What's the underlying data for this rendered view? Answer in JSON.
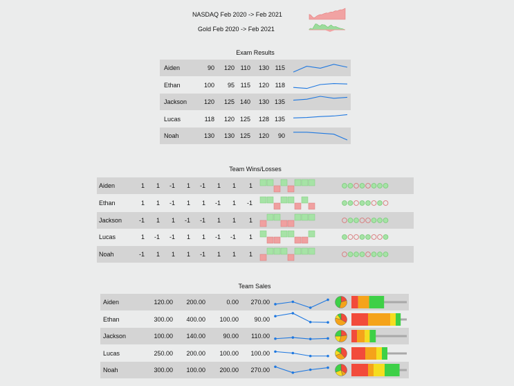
{
  "header": {
    "nasdaq_label": "NASDAQ Feb 2020 -> Feb 2021",
    "gold_label": "Gold Feb 2020 -> Feb 2021"
  },
  "exam": {
    "title": "Exam Results",
    "rows": [
      {
        "name": "Aiden",
        "scores": [
          "90",
          "120",
          "110",
          "130",
          "115"
        ]
      },
      {
        "name": "Ethan",
        "scores": [
          "100",
          "95",
          "115",
          "120",
          "118"
        ]
      },
      {
        "name": "Jackson",
        "scores": [
          "120",
          "125",
          "140",
          "130",
          "135"
        ]
      },
      {
        "name": "Lucas",
        "scores": [
          "118",
          "120",
          "125",
          "128",
          "135"
        ]
      },
      {
        "name": "Noah",
        "scores": [
          "130",
          "130",
          "125",
          "120",
          "90"
        ]
      }
    ]
  },
  "wins": {
    "title": "Team Wins/Losses",
    "rows": [
      {
        "name": "Aiden",
        "results": [
          "1",
          "1",
          "-1",
          "1",
          "-1",
          "1",
          "1",
          "1"
        ]
      },
      {
        "name": "Ethan",
        "results": [
          "1",
          "1",
          "-1",
          "1",
          "1",
          "-1",
          "1",
          "-1"
        ]
      },
      {
        "name": "Jackson",
        "results": [
          "-1",
          "1",
          "1",
          "-1",
          "-1",
          "1",
          "1",
          "1"
        ]
      },
      {
        "name": "Lucas",
        "results": [
          "1",
          "-1",
          "-1",
          "1",
          "1",
          "-1",
          "-1",
          "1"
        ]
      },
      {
        "name": "Noah",
        "results": [
          "-1",
          "1",
          "1",
          "1",
          "-1",
          "1",
          "1",
          "1"
        ]
      }
    ]
  },
  "sales": {
    "title": "Team Sales",
    "rows": [
      {
        "name": "Aiden",
        "values": [
          "120.00",
          "200.00",
          "0.00",
          "270.00"
        ]
      },
      {
        "name": "Ethan",
        "values": [
          "300.00",
          "400.00",
          "100.00",
          "90.00"
        ]
      },
      {
        "name": "Jackson",
        "values": [
          "100.00",
          "140.00",
          "90.00",
          "110.00"
        ]
      },
      {
        "name": "Lucas",
        "values": [
          "250.00",
          "200.00",
          "100.00",
          "100.00"
        ]
      },
      {
        "name": "Noah",
        "values": [
          "300.00",
          "100.00",
          "200.00",
          "270.00"
        ]
      }
    ]
  },
  "colors": {
    "line": "#1f78e0",
    "win": "#a6e3a6",
    "win_border": "#7fcc7f",
    "loss": "#f0a0a0",
    "loss_border": "#d87878",
    "nasdaq": "#f1a3a3",
    "gold": "#9cdc9c",
    "bar_red": "#f24b3b",
    "bar_orange": "#f5a31a",
    "bar_yellow": "#f5dd20",
    "bar_green": "#3ed047",
    "bar_gray": "#a9a9a9"
  }
}
